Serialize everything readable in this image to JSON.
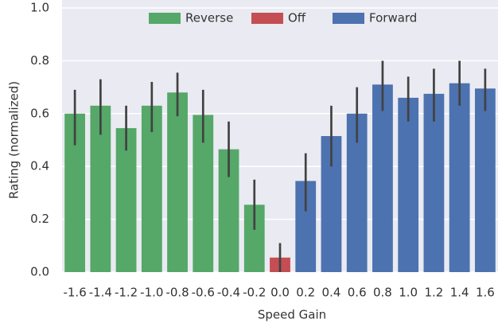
{
  "chart_data": {
    "type": "bar",
    "x_label": "Speed Gain",
    "y_label": "Rating (normalized)",
    "categories": [
      "-1.6",
      "-1.4",
      "-1.2",
      "-1.0",
      "-0.8",
      "-0.6",
      "-0.4",
      "-0.2",
      "0.0",
      "0.2",
      "0.4",
      "0.6",
      "0.8",
      "1.0",
      "1.2",
      "1.4",
      "1.6"
    ],
    "series": [
      {
        "name": "Reverse",
        "color": "#55a868",
        "values": [
          0.6,
          0.63,
          0.545,
          0.63,
          0.68,
          0.595,
          0.465,
          0.255,
          null,
          null,
          null,
          null,
          null,
          null,
          null,
          null,
          null
        ],
        "ci_low": [
          0.48,
          0.52,
          0.46,
          0.53,
          0.59,
          0.49,
          0.36,
          0.16,
          null,
          null,
          null,
          null,
          null,
          null,
          null,
          null,
          null
        ],
        "ci_high": [
          0.69,
          0.73,
          0.63,
          0.72,
          0.755,
          0.69,
          0.57,
          0.35,
          null,
          null,
          null,
          null,
          null,
          null,
          null,
          null,
          null
        ]
      },
      {
        "name": "Off",
        "color": "#c44e52",
        "values": [
          null,
          null,
          null,
          null,
          null,
          null,
          null,
          null,
          0.055,
          null,
          null,
          null,
          null,
          null,
          null,
          null,
          null
        ],
        "ci_low": [
          null,
          null,
          null,
          null,
          null,
          null,
          null,
          null,
          0.0,
          null,
          null,
          null,
          null,
          null,
          null,
          null,
          null
        ],
        "ci_high": [
          null,
          null,
          null,
          null,
          null,
          null,
          null,
          null,
          0.11,
          null,
          null,
          null,
          null,
          null,
          null,
          null,
          null
        ]
      },
      {
        "name": "Forward",
        "color": "#4c72b0",
        "values": [
          null,
          null,
          null,
          null,
          null,
          null,
          null,
          null,
          null,
          0.345,
          0.515,
          0.6,
          0.71,
          0.66,
          0.675,
          0.715,
          0.695
        ],
        "ci_low": [
          null,
          null,
          null,
          null,
          null,
          null,
          null,
          null,
          null,
          0.23,
          0.4,
          0.49,
          0.61,
          0.57,
          0.57,
          0.63,
          0.61
        ],
        "ci_high": [
          null,
          null,
          null,
          null,
          null,
          null,
          null,
          null,
          null,
          0.45,
          0.63,
          0.7,
          0.8,
          0.74,
          0.77,
          0.8,
          0.77
        ]
      }
    ],
    "ylim": [
      0,
      1
    ],
    "yticks": [
      {
        "value": 0,
        "label": "0.0"
      },
      0.2,
      0.4,
      0.6,
      0.8,
      {
        "value": 1,
        "label": "1.0"
      }
    ],
    "grid": true,
    "legend": "top"
  }
}
